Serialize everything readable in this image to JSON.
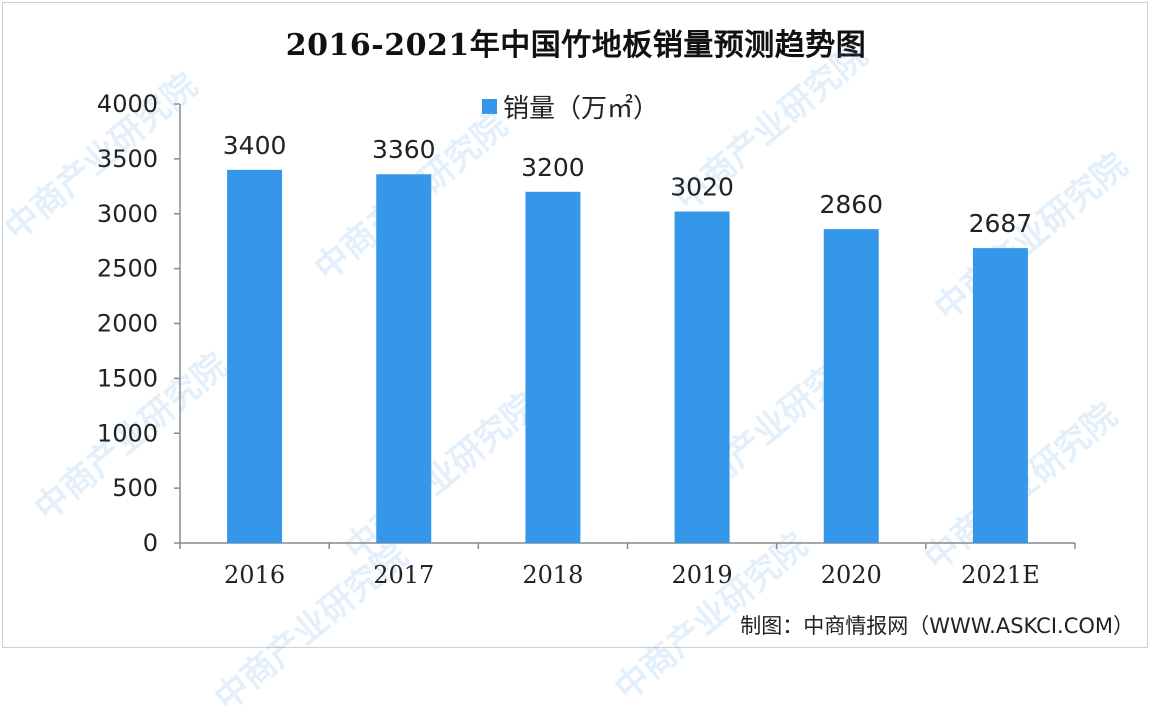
{
  "chart_data": {
    "type": "bar",
    "title": "2016-2021年中国竹地板销量预测趋势图",
    "categories": [
      "2016",
      "2017",
      "2018",
      "2019",
      "2020",
      "2021E"
    ],
    "series": [
      {
        "name": "销量（万㎡）",
        "values": [
          3400,
          3360,
          3200,
          3020,
          2860,
          2687
        ]
      }
    ],
    "ylim": [
      0,
      4000
    ],
    "yticks": [
      0,
      500,
      1000,
      1500,
      2000,
      2500,
      3000,
      3500,
      4000
    ],
    "xlabel": "",
    "ylabel": "",
    "grid": false,
    "legend_position": "top-center",
    "data_labels": true,
    "bar_color": "#3597ea"
  },
  "source_note": "制图：中商情报网（WWW.ASKCI.COM）",
  "watermark_text": "中商产业研究院"
}
